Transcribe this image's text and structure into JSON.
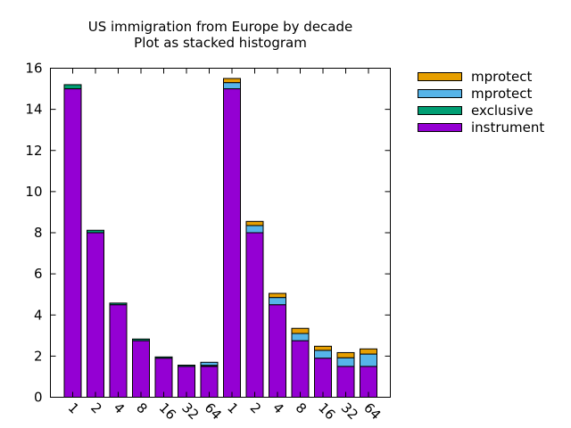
{
  "chart_data": {
    "type": "bar",
    "stacked": true,
    "title": [
      "US immigration from Europe by decade",
      "Plot as stacked histogram"
    ],
    "xlabel": "",
    "ylabel": "",
    "ylim": [
      0,
      16
    ],
    "yticks": [
      0,
      2,
      4,
      6,
      8,
      10,
      12,
      14,
      16
    ],
    "grid": false,
    "legend_position": "top-right-outside",
    "categories": [
      "1",
      "2",
      "4",
      "8",
      "16",
      "32",
      "64",
      "1",
      "2",
      "4",
      "8",
      "16",
      "32",
      "64"
    ],
    "series": [
      {
        "name": "instrument",
        "color": "#9400d3",
        "values": [
          15.0,
          8.0,
          4.5,
          2.75,
          1.9,
          1.5,
          1.5,
          15.0,
          8.0,
          4.5,
          2.75,
          1.9,
          1.5,
          1.5
        ]
      },
      {
        "name": "exclusive",
        "color": "#009e73",
        "values": [
          0.2,
          0.12,
          0.08,
          0.08,
          0.06,
          0.06,
          0.05,
          0,
          0,
          0,
          0,
          0,
          0,
          0
        ]
      },
      {
        "name": "mprotect",
        "color": "#56b4e9",
        "values": [
          0,
          0,
          0,
          0,
          0,
          0,
          0.15,
          0.3,
          0.35,
          0.35,
          0.35,
          0.38,
          0.42,
          0.6
        ]
      },
      {
        "name": "mprotect",
        "color": "#e69f00",
        "values": [
          0,
          0,
          0,
          0,
          0,
          0,
          0,
          0.2,
          0.2,
          0.2,
          0.25,
          0.2,
          0.25,
          0.25
        ]
      }
    ]
  }
}
